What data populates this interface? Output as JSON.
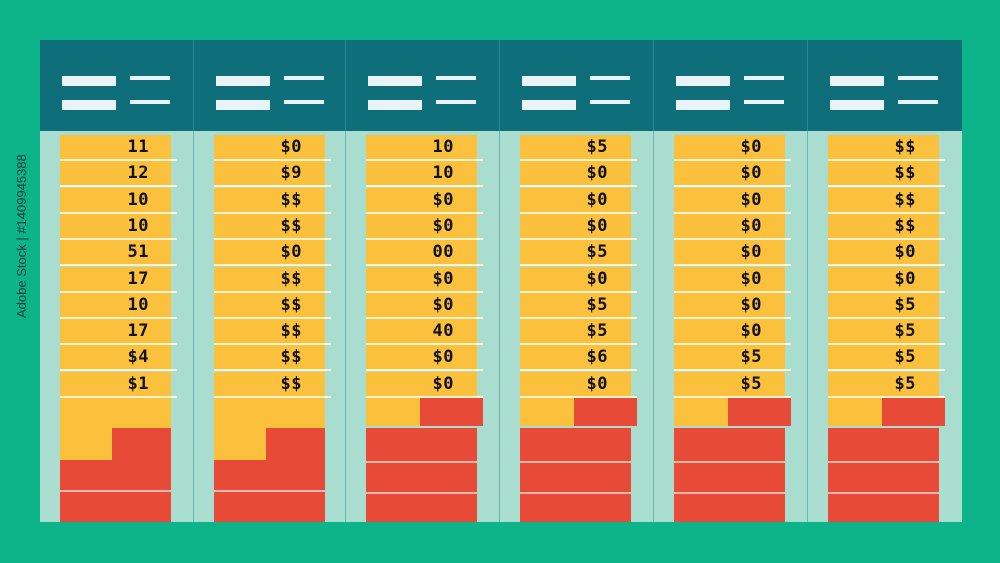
{
  "watermark_text": "Adobe Stock | #1409945388",
  "colors": {
    "background": "#0db48a",
    "panel": "#a8ddd0",
    "header": "#0e6e7a",
    "row": "#fbc03c",
    "red": "#e74a36"
  },
  "columns": [
    {
      "values": [
        "11",
        "12",
        "10",
        "10",
        "51",
        "17",
        "10",
        "17",
        "$4",
        "$1"
      ]
    },
    {
      "values": [
        "$0",
        "$9",
        "$$",
        "$$",
        "$0",
        "$$",
        "$$",
        "$$",
        "$$",
        "$$"
      ]
    },
    {
      "values": [
        "10",
        "10",
        "$0",
        "$0",
        "00",
        "$0",
        "$0",
        "40",
        "$0",
        "$0"
      ]
    },
    {
      "values": [
        "$5",
        "$0",
        "$0",
        "$0",
        "$5",
        "$0",
        "$5",
        "$5",
        "$6",
        "$0"
      ]
    },
    {
      "values": [
        "$0",
        "$0",
        "$0",
        "$0",
        "$0",
        "$0",
        "$0",
        "$0",
        "$5",
        "$5"
      ]
    },
    {
      "values": [
        "$$",
        "$$",
        "$$",
        "$$",
        "$0",
        "$0",
        "$5",
        "$5",
        "$5",
        "$5"
      ]
    }
  ]
}
